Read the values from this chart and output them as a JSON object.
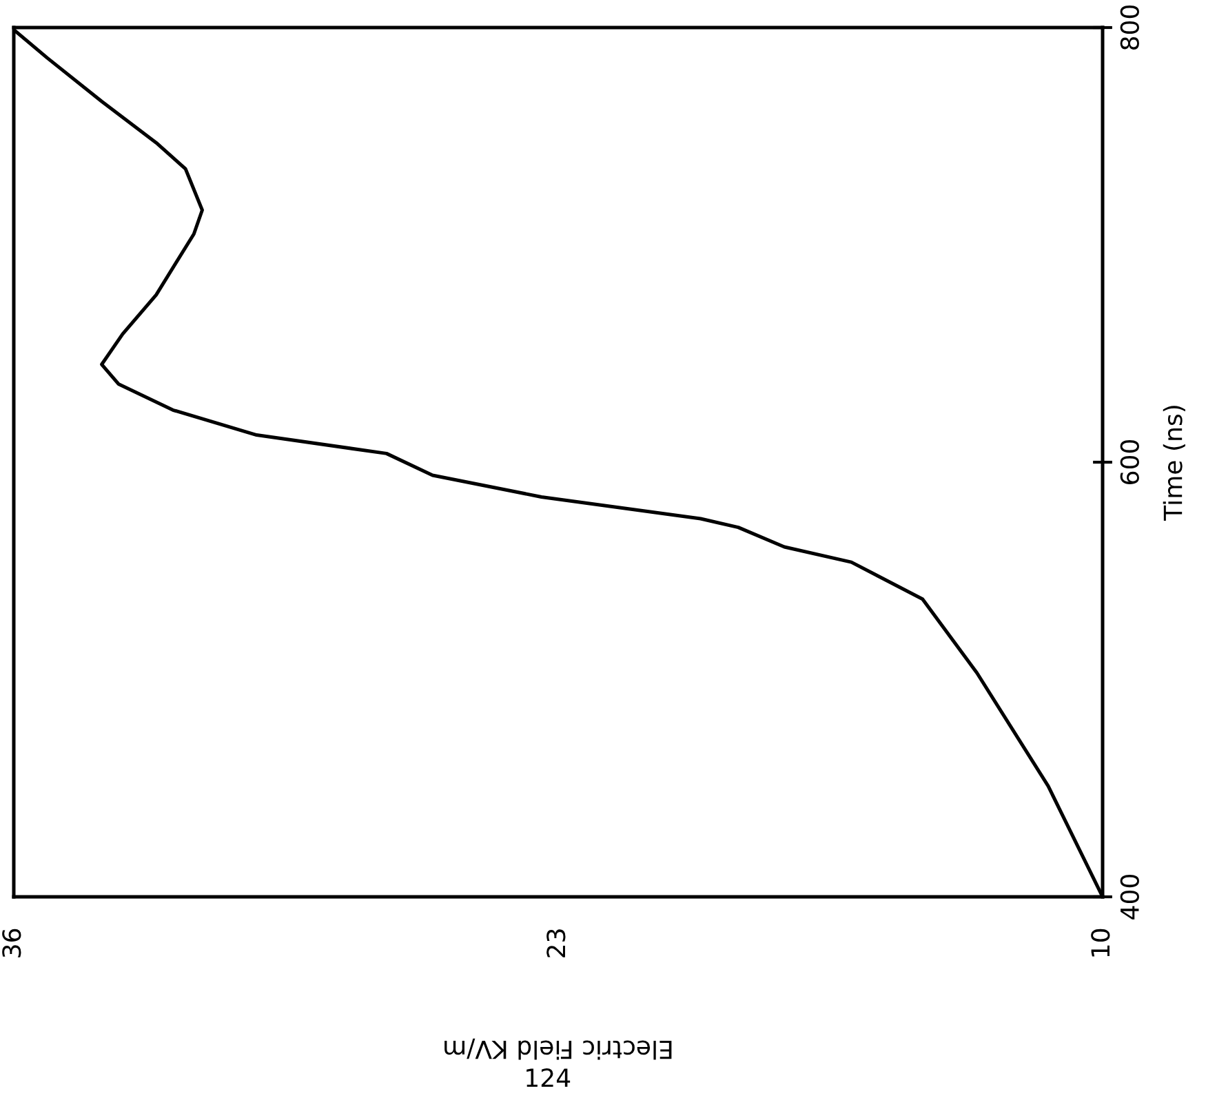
{
  "chart_data": {
    "type": "line",
    "xlabel": "Electric Field KV/m",
    "ylabel": "Time (ns)",
    "x": [
      10,
      11.3,
      13.0,
      14.3,
      16.0,
      17.6,
      18.7,
      19.6,
      23.4,
      26.0,
      27.1,
      30.2,
      32.2,
      33.5,
      33.9,
      33.4,
      32.6,
      31.7,
      31.5,
      31.9,
      32.6,
      33.9,
      35.2,
      36
    ],
    "series": [
      {
        "color": "#000000",
        "values": [
          400,
          451,
          503,
          537,
          554,
          561,
          570,
          574,
          584,
          594,
          604,
          612.5,
          624,
          636,
          645,
          659,
          677,
          705,
          716,
          735,
          747,
          766,
          786,
          799
        ]
      }
    ],
    "xlim": [
      36,
      10
    ],
    "xticks": [
      36,
      23,
      10
    ],
    "ylim": [
      400,
      800
    ],
    "yticks": [
      400,
      600,
      800
    ],
    "grid": false,
    "legend": false,
    "marker": "none",
    "line_style": "solid",
    "annotations": [
      "124"
    ]
  }
}
